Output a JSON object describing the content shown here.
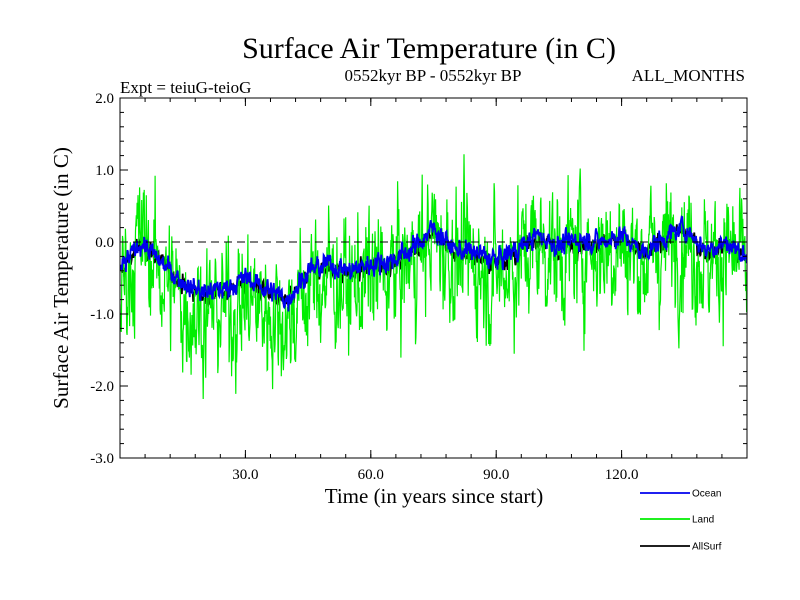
{
  "chart_data": {
    "type": "line",
    "title": "Surface Air Temperature (in C)",
    "subtitle_left": "Expt = teiuG-teioG",
    "subtitle_center": "0552kyr BP - 0552kyr BP",
    "subtitle_right": "ALL_MONTHS",
    "xlabel": "Time (in years since start)",
    "ylabel": "Surface Air Temperature (in C)",
    "xlim": [
      0,
      150
    ],
    "ylim": [
      -3.0,
      2.0
    ],
    "x_ticks": [
      30,
      60,
      90,
      120
    ],
    "x_tick_labels": [
      "30.0",
      "60.0",
      "90.0",
      "120.0"
    ],
    "y_ticks": [
      -3,
      -2,
      -1,
      0,
      1,
      2
    ],
    "y_tick_labels": [
      "-3.0",
      "-2.0",
      "-1.0",
      "0.0",
      "1.0",
      "2.0"
    ],
    "reference_line": 0.0,
    "legend_position": "bottom-right",
    "series": [
      {
        "name": "AllSurf",
        "color": "#000000",
        "x": [
          0,
          5,
          10,
          15,
          20,
          25,
          30,
          35,
          40,
          45,
          50,
          55,
          60,
          65,
          70,
          75,
          80,
          85,
          90,
          95,
          100,
          105,
          110,
          115,
          120,
          125,
          130,
          135,
          140,
          145,
          150
        ],
        "values": [
          -0.45,
          0.0,
          -0.3,
          -0.6,
          -0.75,
          -0.7,
          -0.55,
          -0.7,
          -0.85,
          -0.45,
          -0.35,
          -0.45,
          -0.35,
          -0.3,
          -0.15,
          0.15,
          -0.15,
          -0.2,
          -0.3,
          -0.15,
          0.05,
          -0.1,
          0.0,
          -0.05,
          0.05,
          -0.2,
          0.0,
          0.15,
          -0.15,
          -0.05,
          -0.25
        ]
      },
      {
        "name": "Land",
        "color": "#00ee00",
        "x": [
          0,
          5,
          10,
          15,
          20,
          25,
          30,
          35,
          40,
          45,
          50,
          55,
          60,
          65,
          70,
          75,
          80,
          85,
          90,
          95,
          100,
          105,
          110,
          115,
          120,
          125,
          130,
          135,
          140,
          145,
          150
        ],
        "values": [
          -0.7,
          0.05,
          -0.45,
          -0.85,
          -1.0,
          -0.95,
          -0.8,
          -0.95,
          -1.1,
          -0.65,
          -0.5,
          -0.65,
          -0.5,
          -0.45,
          -0.25,
          0.1,
          -0.25,
          -0.3,
          -0.45,
          -0.25,
          0.0,
          -0.2,
          -0.05,
          -0.1,
          0.0,
          -0.3,
          -0.05,
          0.1,
          -0.25,
          -0.15,
          -0.35
        ]
      },
      {
        "name": "Ocean",
        "color": "#0000ee",
        "x": [
          0,
          5,
          10,
          15,
          20,
          25,
          30,
          35,
          40,
          45,
          50,
          55,
          60,
          65,
          70,
          75,
          80,
          85,
          90,
          95,
          100,
          105,
          110,
          115,
          120,
          125,
          130,
          135,
          140,
          145,
          150
        ],
        "values": [
          -0.4,
          0.0,
          -0.3,
          -0.55,
          -0.7,
          -0.65,
          -0.5,
          -0.65,
          -0.8,
          -0.4,
          -0.3,
          -0.4,
          -0.3,
          -0.25,
          -0.1,
          0.2,
          -0.1,
          -0.15,
          -0.25,
          -0.1,
          0.1,
          -0.05,
          0.05,
          0.0,
          0.1,
          -0.15,
          0.05,
          0.2,
          -0.1,
          0.0,
          -0.2
        ]
      }
    ]
  }
}
